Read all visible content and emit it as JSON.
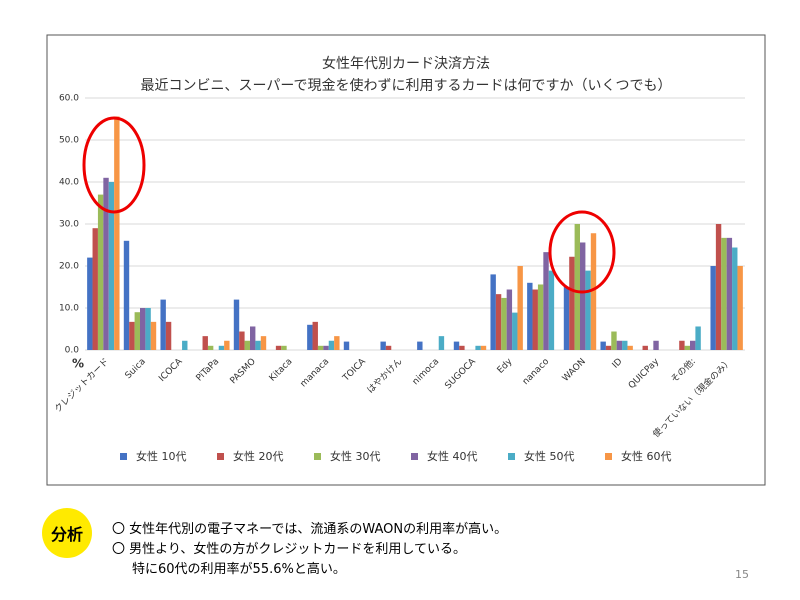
{
  "chart_data": {
    "type": "bar",
    "title": "女性年代別カード決済方法",
    "subtitle": "最近コンビニ、スーパーで現金を使わずに利用するカードは何ですか（いくつでも）",
    "y_label": "%",
    "categories": [
      "クレジットカード",
      "Suica",
      "ICOCA",
      "PiTaPa",
      "PASMO",
      "Kitaca",
      "manaca",
      "TOICA",
      "はやかけん",
      "nimoca",
      "SUGOCA",
      "Edy",
      "nanaco",
      "WAON",
      "ID",
      "QUICPay",
      "その他:",
      "使っていない（現金のみ）"
    ],
    "series": [
      {
        "name": "女性 10代",
        "color": "#4472c4",
        "values": [
          22,
          26,
          12,
          0,
          12,
          0,
          6,
          2,
          2,
          2,
          2,
          18,
          16,
          15,
          2,
          0,
          0,
          20
        ]
      },
      {
        "name": "女性 20代",
        "color": "#c0504d",
        "values": [
          29,
          6.7,
          6.7,
          3.3,
          4.4,
          1,
          6.7,
          0,
          1,
          0,
          1,
          13.3,
          14.4,
          22.2,
          1,
          1,
          2.2,
          30
        ]
      },
      {
        "name": "女性 30代",
        "color": "#9bbb59",
        "values": [
          37,
          9,
          0,
          1,
          2.2,
          1,
          1,
          0,
          0,
          0,
          0,
          12.4,
          15.6,
          30,
          4.4,
          0,
          1,
          26.7
        ]
      },
      {
        "name": "女性 40代",
        "color": "#8064a2",
        "values": [
          41,
          10,
          0,
          0,
          5.6,
          0,
          1,
          0,
          0,
          0,
          0,
          14.4,
          23.3,
          25.6,
          2.2,
          2.2,
          2.2,
          26.7
        ]
      },
      {
        "name": "女性 50代",
        "color": "#4bacc6",
        "values": [
          40,
          10,
          2.2,
          1,
          2.2,
          0,
          2.2,
          0,
          0,
          3.3,
          1,
          8.9,
          18.9,
          18.9,
          2.2,
          0,
          5.6,
          24.4
        ]
      },
      {
        "name": "女性 60代",
        "color": "#f79646",
        "values": [
          55.6,
          6.7,
          0,
          2.2,
          3.3,
          0,
          3.3,
          0,
          0,
          0,
          1,
          20,
          0,
          27.8,
          1,
          0,
          0,
          20
        ]
      }
    ],
    "ylim": [
      0,
      60
    ],
    "yticks": [
      {
        "value": 0,
        "label": "0.0"
      },
      {
        "value": 10,
        "label": "10.0"
      },
      {
        "value": 20,
        "label": "20.0"
      },
      {
        "value": 30,
        "label": "30.0"
      },
      {
        "value": 40,
        "label": "40.0"
      },
      {
        "value": 50,
        "label": "50.0"
      },
      {
        "value": 60,
        "label": "60.0"
      }
    ],
    "grid": true
  },
  "analysis": {
    "label": "分析",
    "lines": [
      "〇 女性年代別の電子マネーでは、流通系のWAONの利用率が高い。",
      "〇 男性より、女性の方がクレジットカードを利用している。",
      "特に60代の利用率が55.6%と高い。"
    ]
  },
  "page_number": "15"
}
